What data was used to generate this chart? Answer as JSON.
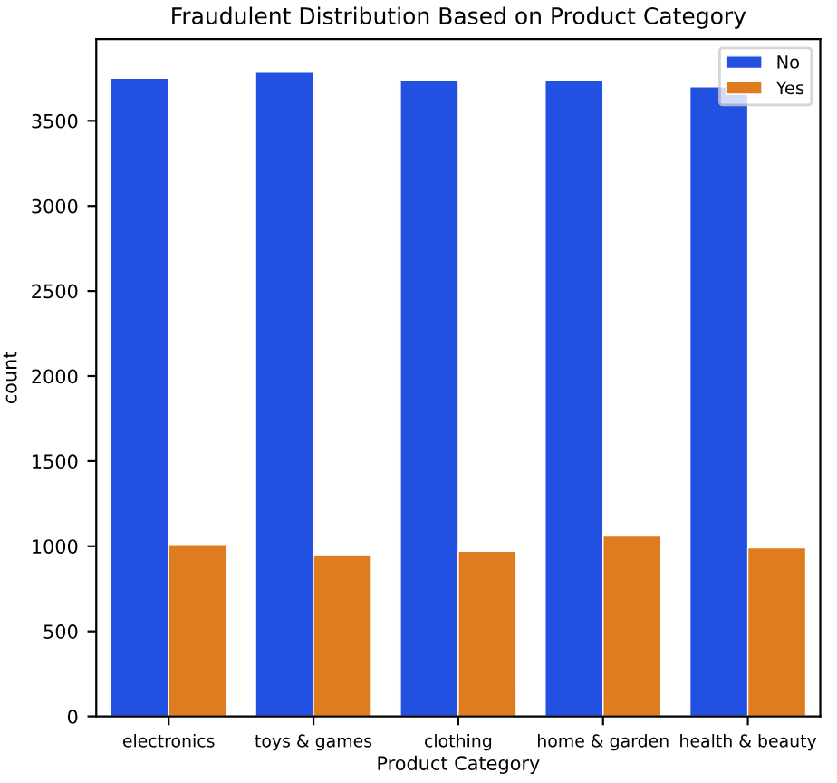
{
  "chart_data": {
    "type": "bar",
    "title": "Fraudulent Distribution Based on Product Category",
    "xlabel": "Product Category",
    "ylabel": "count",
    "categories": [
      "electronics",
      "toys & games",
      "clothing",
      "home & garden",
      "health & beauty"
    ],
    "series": [
      {
        "name": "No",
        "color": "#2250e0",
        "values": [
          3750,
          3790,
          3740,
          3740,
          3700
        ]
      },
      {
        "name": "Yes",
        "color": "#e07c20",
        "values": [
          1010,
          950,
          970,
          1060,
          990
        ]
      }
    ],
    "ylim": [
      0,
      3980
    ],
    "yticks": [
      0,
      500,
      1000,
      1500,
      2000,
      2500,
      3000,
      3500
    ],
    "legend": "top right",
    "grid": false
  }
}
